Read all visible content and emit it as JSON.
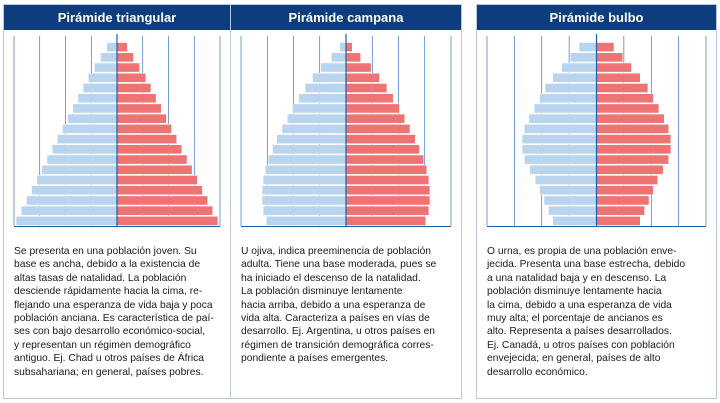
{
  "colors": {
    "header": "#0d3d7c",
    "male": "#b8d4ee",
    "female": "#ef7373",
    "grid": "#1b5fb0",
    "axis": "#1b5fb0"
  },
  "cards": [
    {
      "title": "Pirámide triangular",
      "description_lines": [
        "Se presenta en una población joven. Su",
        "base es ancha, debido a la existencia de",
        "altas tasas de natalidad. La población",
        "desciende rápidamente hacia la cima, re-",
        "flejando una esperanza de vida baja y poca",
        "población anciana. Es característica de paí-",
        "ses con bajo desarrollo económico-social,",
        "y representan un régimen demográfico",
        "antiguo. Ej. Chad u otros países de África",
        "subsahariana; en general, países pobres."
      ]
    },
    {
      "title": "Pirámide campana",
      "description_lines": [
        "U ojiva, indica preeminencia de población",
        "adulta. Tiene una base moderada, pues se",
        "ha iniciado el descenso de la natalidad.",
        "La población disminuye lentamente",
        "hacia arriba, debido a una esperanza de",
        "vida alta. Caracteriza a países en vías de",
        "desarrollo. Ej. Argentina, u otros países en",
        "régimen de transición demográfica corres-",
        "pondiente a países emergentes."
      ]
    },
    {
      "title": "Pirámide bulbo",
      "description_lines": [
        "O urna, es propia de una población enve-",
        "jecida. Presenta una base estrecha, debido",
        "a una natalidad baja y en descenso. La",
        "población disminuye lentamente hacia",
        "la cima, debido a una esperanza de vida",
        "muy alta; el porcentaje de ancianos es",
        "alto. Representa a países desarrollados.",
        "Ej. Canadá, u otros países con población",
        "envejecida; en general, países de alto",
        "desarrollo económico."
      ]
    }
  ],
  "chart_data": [
    {
      "type": "bar",
      "orientation": "population-pyramid",
      "series": [
        {
          "values": [
            0.98,
            0.93,
            0.88,
            0.83,
            0.78,
            0.73,
            0.68,
            0.63,
            0.58,
            0.53,
            0.48,
            0.43,
            0.38,
            0.33,
            0.28,
            0.22,
            0.16,
            0.1
          ]
        },
        {
          "values": [
            0.98,
            0.93,
            0.88,
            0.83,
            0.78,
            0.73,
            0.68,
            0.63,
            0.58,
            0.53,
            0.48,
            0.43,
            0.38,
            0.33,
            0.28,
            0.22,
            0.16,
            0.1
          ]
        }
      ]
    },
    {
      "type": "bar",
      "orientation": "population-pyramid",
      "series": [
        {
          "values": [
            0.76,
            0.79,
            0.8,
            0.8,
            0.79,
            0.77,
            0.74,
            0.7,
            0.66,
            0.61,
            0.56,
            0.51,
            0.45,
            0.39,
            0.32,
            0.24,
            0.14,
            0.06
          ]
        },
        {
          "values": [
            0.76,
            0.79,
            0.8,
            0.8,
            0.79,
            0.77,
            0.74,
            0.7,
            0.66,
            0.61,
            0.56,
            0.51,
            0.45,
            0.39,
            0.32,
            0.24,
            0.14,
            0.06
          ]
        }
      ]
    },
    {
      "type": "bar",
      "orientation": "population-pyramid",
      "series": [
        {
          "values": [
            0.4,
            0.44,
            0.48,
            0.52,
            0.56,
            0.61,
            0.66,
            0.68,
            0.68,
            0.66,
            0.62,
            0.57,
            0.52,
            0.47,
            0.4,
            0.32,
            0.24,
            0.16
          ]
        },
        {
          "values": [
            0.4,
            0.44,
            0.48,
            0.52,
            0.56,
            0.61,
            0.66,
            0.68,
            0.68,
            0.66,
            0.62,
            0.57,
            0.52,
            0.47,
            0.4,
            0.32,
            0.24,
            0.16
          ]
        }
      ]
    }
  ]
}
